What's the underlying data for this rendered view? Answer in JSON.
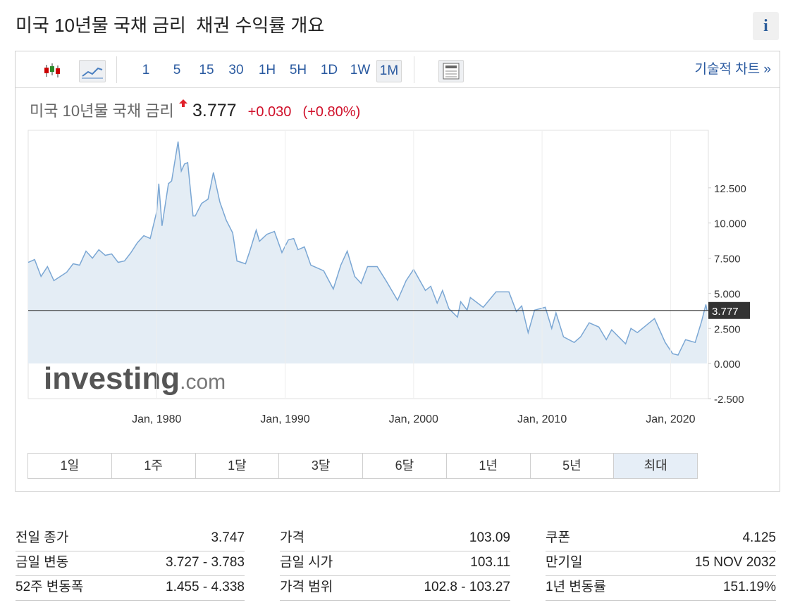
{
  "header": {
    "title": "미국 10년물 국채 금리  채권 수익률 개요",
    "info_icon": "i"
  },
  "toolbar": {
    "intervals": [
      "1",
      "5",
      "15",
      "30",
      "1H",
      "5H",
      "1D",
      "1W",
      "1M"
    ],
    "selected_interval": 8,
    "technical_link": "기술적 차트 »"
  },
  "quote": {
    "name": "미국 10년물 국채 금리",
    "price": 3.777,
    "change": "+0.030",
    "change_pct": "(+0.80%)"
  },
  "chart_data": {
    "type": "line",
    "color": "#7ba7d4",
    "fill_color": "#e4edf5",
    "fill": true,
    "reference_color": "#333",
    "watermark": [
      "investing",
      ".com"
    ],
    "x": [
      "1970-01",
      "1970-07",
      "1971-01",
      "1971-07",
      "1972-01",
      "1972-07",
      "1973-01",
      "1973-07",
      "1974-01",
      "1974-07",
      "1975-01",
      "1975-07",
      "1976-01",
      "1976-07",
      "1977-01",
      "1977-07",
      "1978-01",
      "1978-07",
      "1979-01",
      "1979-07",
      "1980-01",
      "1980-03",
      "1980-06",
      "1980-12",
      "1981-03",
      "1981-09",
      "1981-12",
      "1982-03",
      "1982-06",
      "1982-11",
      "1983-01",
      "1983-07",
      "1984-01",
      "1984-06",
      "1984-12",
      "1985-06",
      "1985-12",
      "1986-04",
      "1986-12",
      "1987-04",
      "1987-10",
      "1988-01",
      "1988-08",
      "1989-03",
      "1989-10",
      "1990-04",
      "1990-09",
      "1991-01",
      "1991-07",
      "1992-01",
      "1992-07",
      "1993-01",
      "1993-10",
      "1994-05",
      "1994-11",
      "1995-06",
      "1995-12",
      "1996-06",
      "1997-03",
      "1997-12",
      "1998-10",
      "1999-06",
      "2000-01",
      "2000-12",
      "2001-05",
      "2001-11",
      "2002-04",
      "2002-10",
      "2003-06",
      "2003-09",
      "2004-03",
      "2004-06",
      "2005-06",
      "2006-06",
      "2007-06",
      "2008-01",
      "2008-06",
      "2008-12",
      "2009-06",
      "2010-04",
      "2010-10",
      "2011-02",
      "2011-09",
      "2012-07",
      "2013-01",
      "2013-09",
      "2014-06",
      "2015-01",
      "2015-06",
      "2016-07",
      "2016-12",
      "2017-06",
      "2018-10",
      "2019-08",
      "2020-03",
      "2020-08",
      "2021-03",
      "2021-12",
      "2022-06",
      "2022-10",
      "2022-11"
    ],
    "values": [
      7.2,
      7.4,
      6.2,
      6.9,
      5.9,
      6.2,
      6.5,
      7.1,
      7.0,
      8.0,
      7.5,
      8.1,
      7.7,
      7.8,
      7.2,
      7.3,
      7.9,
      8.6,
      9.1,
      8.9,
      10.8,
      12.8,
      9.8,
      12.8,
      13.0,
      15.8,
      13.7,
      14.2,
      14.3,
      10.5,
      10.5,
      11.4,
      11.7,
      13.6,
      11.5,
      10.2,
      9.3,
      7.3,
      7.1,
      8.0,
      9.5,
      8.7,
      9.2,
      9.4,
      7.9,
      8.8,
      8.9,
      8.1,
      8.3,
      7.0,
      6.8,
      6.6,
      5.3,
      7.0,
      8.0,
      6.2,
      5.7,
      6.9,
      6.9,
      5.8,
      4.5,
      5.9,
      6.7,
      5.2,
      5.5,
      4.3,
      5.2,
      3.9,
      3.3,
      4.4,
      3.8,
      4.7,
      4.0,
      5.1,
      5.1,
      3.7,
      4.1,
      2.2,
      3.8,
      4.0,
      2.5,
      3.6,
      1.9,
      1.5,
      1.9,
      2.9,
      2.6,
      1.7,
      2.4,
      1.4,
      2.5,
      2.2,
      3.2,
      1.5,
      0.7,
      0.6,
      1.7,
      1.5,
      3.0,
      4.2,
      3.777
    ],
    "xlim": [
      "1970-01",
      "2022-11"
    ],
    "xticks": [
      {
        "value": "1980-01",
        "label": "Jan, 1980"
      },
      {
        "value": "1990-01",
        "label": "Jan, 1990"
      },
      {
        "value": "2000-01",
        "label": "Jan, 2000"
      },
      {
        "value": "2010-01",
        "label": "Jan, 2010"
      },
      {
        "value": "2020-01",
        "label": "Jan, 2020"
      }
    ],
    "ylim": [
      -2.5,
      16.6
    ],
    "yticks": [
      {
        "value": -2.5,
        "label": "-2.500"
      },
      {
        "value": 0,
        "label": "0.000"
      },
      {
        "value": 2.5,
        "label": "2.500"
      },
      {
        "value": 5,
        "label": "5.000"
      },
      {
        "value": 7.5,
        "label": "7.500"
      },
      {
        "value": 10,
        "label": "10.000"
      },
      {
        "value": 12.5,
        "label": "12.500"
      }
    ]
  },
  "ranges": {
    "buttons": [
      "1일",
      "1주",
      "1달",
      "3달",
      "6달",
      "1년",
      "5년",
      "최대"
    ],
    "selected": 7
  },
  "stats": [
    [
      {
        "label": "전일 종가",
        "value": "3.747"
      },
      {
        "label": "금일 변동",
        "value": "3.727 - 3.783"
      },
      {
        "label": "52주 변동폭",
        "value": "1.455 - 4.338"
      }
    ],
    [
      {
        "label": "가격",
        "value": "103.09"
      },
      {
        "label": "금일 시가",
        "value": "103.11"
      },
      {
        "label": "가격 범위",
        "value": "102.8 - 103.27"
      }
    ],
    [
      {
        "label": "쿠폰",
        "value": "4.125"
      },
      {
        "label": "만기일",
        "value": "15 NOV 2032"
      },
      {
        "label": "1년 변동률",
        "value": "151.19%"
      }
    ]
  ]
}
